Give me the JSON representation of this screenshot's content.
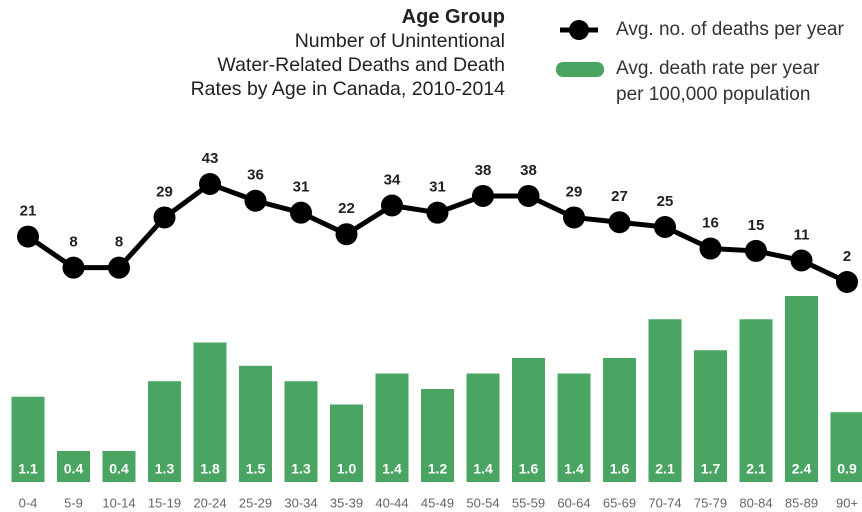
{
  "chart_data": {
    "type": "bar",
    "title": "Age Group",
    "subtitle": [
      "Number of Unintentional",
      "Water-Related Deaths and Death",
      "Rates by Age in Canada, 2010-2014"
    ],
    "categories": [
      "0-4",
      "5-9",
      "10-14",
      "15-19",
      "20-24",
      "25-29",
      "30-34",
      "35-39",
      "40-44",
      "45-49",
      "50-54",
      "55-59",
      "60-64",
      "65-69",
      "70-74",
      "75-79",
      "80-84",
      "85-89",
      "90+"
    ],
    "series": [
      {
        "name": "Avg. no. of deaths per year",
        "type": "line",
        "color": "#000000",
        "values": [
          21,
          8,
          8,
          29,
          43,
          36,
          31,
          22,
          34,
          31,
          38,
          38,
          29,
          27,
          25,
          16,
          15,
          11,
          2
        ]
      },
      {
        "name": "Avg. death rate per year per 100,000 population",
        "type": "bar",
        "color": "#49a561",
        "values": [
          1.1,
          0.4,
          0.4,
          1.3,
          1.8,
          1.5,
          1.3,
          1.0,
          1.4,
          1.2,
          1.4,
          1.6,
          1.4,
          1.6,
          2.1,
          1.7,
          2.1,
          2.4,
          0.9
        ],
        "value_labels": [
          "1.1",
          "0.4",
          "0.4",
          "1.3",
          "1.8",
          "1.5",
          "1.3",
          "1.0",
          "1.4",
          "1.2",
          "1.4",
          "1.6",
          "1.4",
          "1.6",
          "2.1",
          "1.7",
          "2.1",
          "2.4",
          "0.9"
        ]
      }
    ]
  }
}
